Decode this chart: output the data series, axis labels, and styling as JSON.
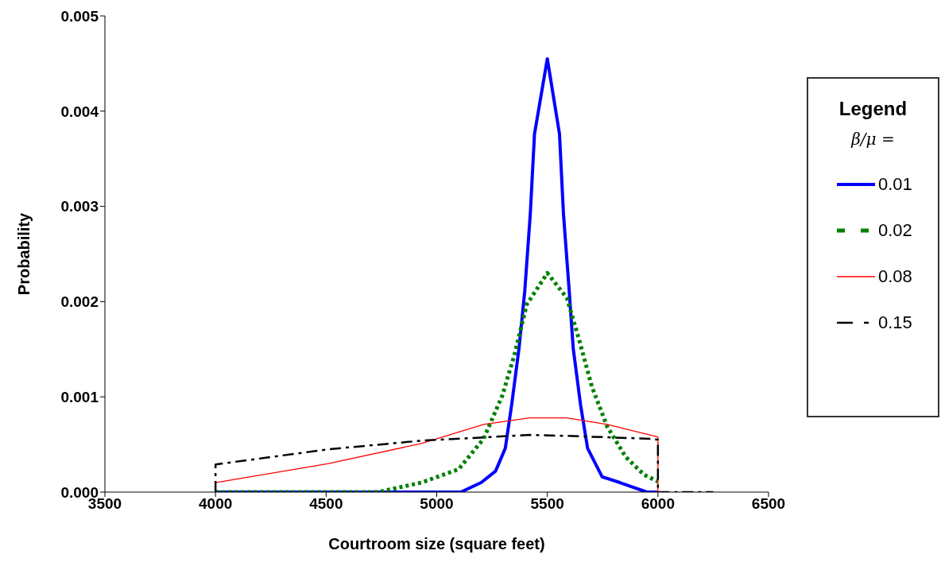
{
  "chart_data": {
    "type": "line",
    "xlabel": "Courtroom size (square feet)",
    "ylabel": "Probability",
    "legend_title": "Legend",
    "annotations": [
      "β/μ ="
    ],
    "legend": "right",
    "marker": "none",
    "xlim": [
      3500,
      6500
    ],
    "xticks": [
      3500,
      4000,
      4500,
      5000,
      5500,
      6000,
      6500
    ],
    "ylim": [
      0,
      0.005
    ],
    "yticks": [
      {
        "value": 0,
        "label": "0.000"
      },
      {
        "value": 0.001,
        "label": "0.001"
      },
      {
        "value": 0.002,
        "label": "0.002"
      },
      {
        "value": 0.003,
        "label": "0.003"
      },
      {
        "value": 0.004,
        "label": "0.004"
      },
      {
        "value": 0.005,
        "label": "0.005"
      }
    ],
    "series": [
      {
        "name": "0.01",
        "color": "#0000ff",
        "line_style": "solid",
        "x": [
          4000,
          4500,
          5000,
          5109,
          5201,
          5266,
          5310,
          5339,
          5372,
          5398,
          5423,
          5442,
          5500,
          5555,
          5573,
          5599,
          5617,
          5650,
          5682,
          5748,
          5828,
          5950,
          6000
        ],
        "values": [
          0,
          0,
          0,
          0,
          0.0001,
          0.00022,
          0.00046,
          0.00092,
          0.00151,
          0.00211,
          0.00292,
          0.00376,
          0.00455,
          0.00376,
          0.00292,
          0.00211,
          0.00151,
          0.00092,
          0.00046,
          0.00016,
          0.0001,
          0,
          0
        ]
      },
      {
        "name": "0.02",
        "color": "#008000",
        "line_style": "dotted",
        "x": [
          4000,
          4500,
          4734,
          4931,
          5099,
          5212,
          5296,
          5350,
          5407,
          5500,
          5588,
          5645,
          5701,
          5770,
          5854,
          5938,
          6000
        ],
        "values": [
          0,
          0,
          0,
          0.0001,
          0.00024,
          0.00056,
          0.00101,
          0.00143,
          0.00197,
          0.0023,
          0.00204,
          0.00159,
          0.00111,
          0.00069,
          0.00037,
          0.00018,
          0.00011
        ]
      },
      {
        "name": "0.08",
        "color": "#ff0000",
        "line_style": "solid",
        "x": [
          4000,
          4511,
          4931,
          5212,
          5420,
          5588,
          5770,
          6000,
          6000
        ],
        "values": [
          0.0001,
          0.0003,
          0.00051,
          0.00071,
          0.00078,
          0.00078,
          0.00071,
          0.00058,
          0
        ]
      },
      {
        "name": "0.15",
        "color": "#000000",
        "line_style": "dashed",
        "x": [
          4000,
          4000,
          4511,
          4931,
          5420,
          5587,
          5967,
          6000,
          6000,
          6250
        ],
        "values": [
          0,
          0.00029,
          0.00045,
          0.00054,
          0.0006,
          0.00059,
          0.00056,
          0.00055,
          0,
          0
        ]
      }
    ]
  }
}
